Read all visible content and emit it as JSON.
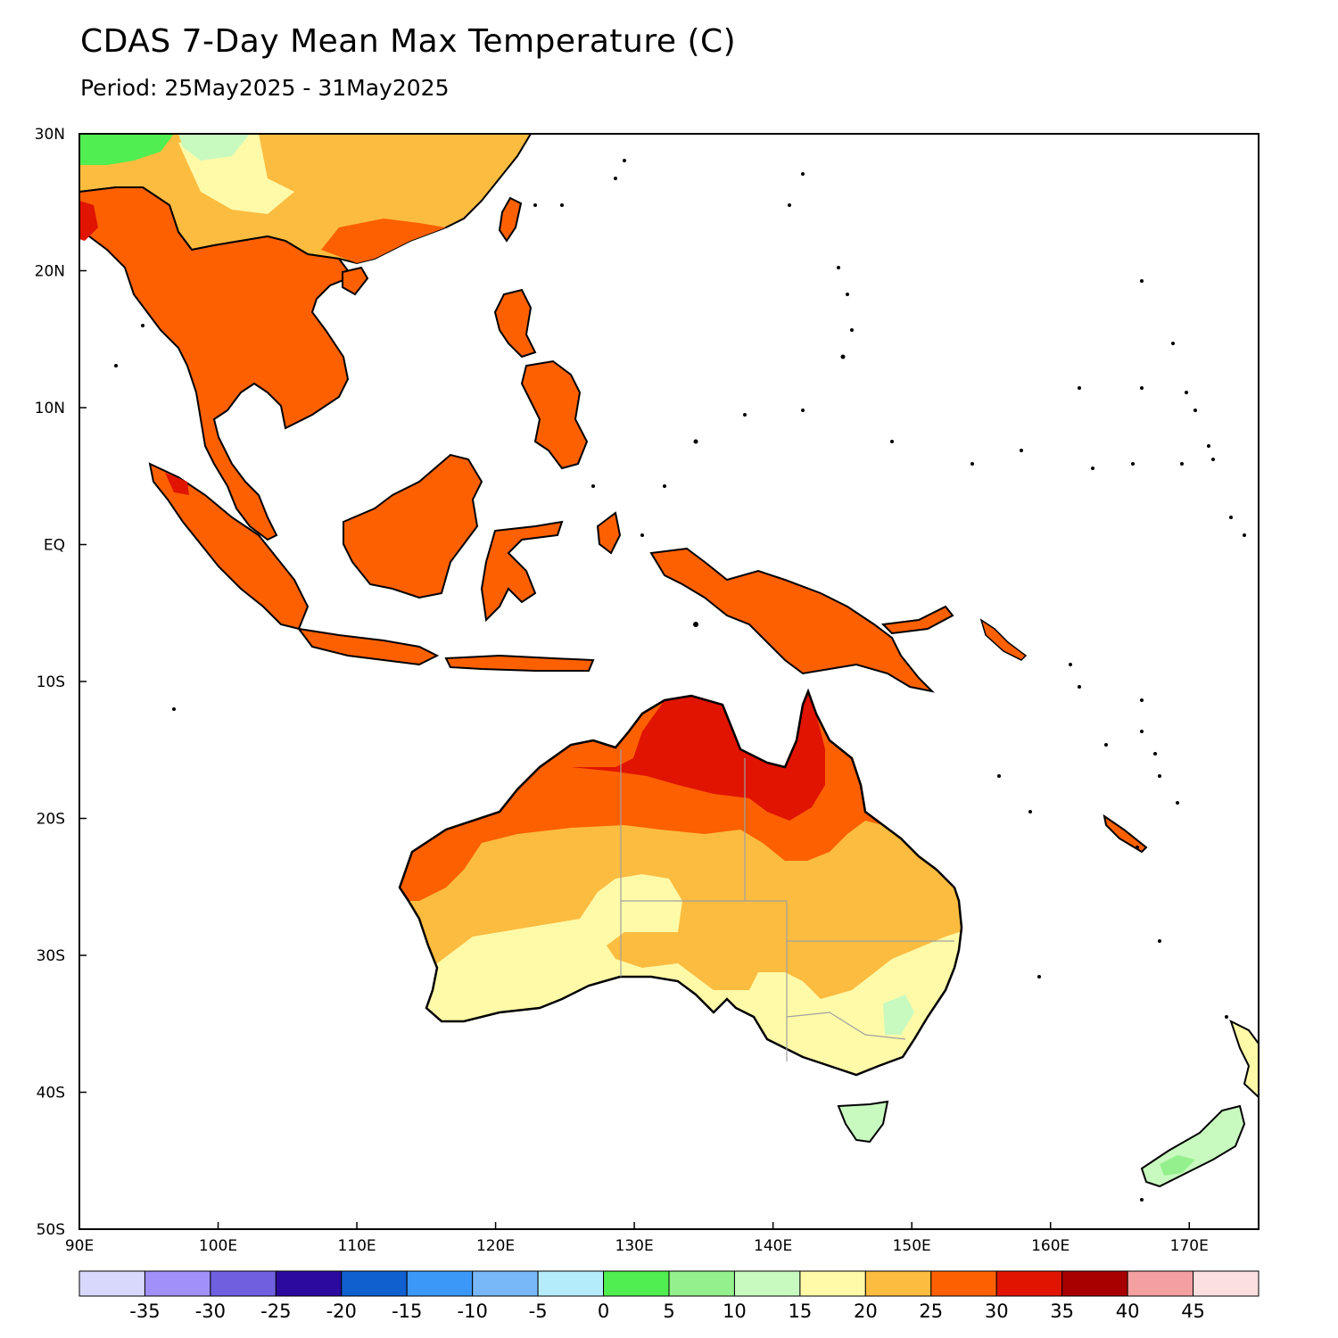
{
  "title": "CDAS 7-Day Mean Max Temperature (C)",
  "subtitle": "Period: 25May2025 - 31May2025",
  "map": {
    "projection": "lat-lon",
    "lon_range": [
      90,
      175
    ],
    "lat_range": [
      -50,
      30
    ],
    "lon_ticks": [
      {
        "value": 90,
        "label": "90E"
      },
      {
        "value": 100,
        "label": "100E"
      },
      {
        "value": 110,
        "label": "110E"
      },
      {
        "value": 120,
        "label": "120E"
      },
      {
        "value": 130,
        "label": "130E"
      },
      {
        "value": 140,
        "label": "140E"
      },
      {
        "value": 150,
        "label": "150E"
      },
      {
        "value": 160,
        "label": "160E"
      },
      {
        "value": 170,
        "label": "170E"
      }
    ],
    "lat_ticks": [
      {
        "value": 30,
        "label": "30N"
      },
      {
        "value": 20,
        "label": "20N"
      },
      {
        "value": 10,
        "label": "10N"
      },
      {
        "value": 0,
        "label": "EQ"
      },
      {
        "value": -10,
        "label": "10S"
      },
      {
        "value": -20,
        "label": "20S"
      },
      {
        "value": -30,
        "label": "30S"
      },
      {
        "value": -40,
        "label": "40S"
      },
      {
        "value": -50,
        "label": "50S"
      }
    ]
  },
  "legend": {
    "colors": [
      "#d8d8fc",
      "#a090f8",
      "#7060e0",
      "#2c0aa0",
      "#1060d0",
      "#3c98f8",
      "#78b8f8",
      "#b4ecfc",
      "#50ee50",
      "#94f08c",
      "#c8fac0",
      "#fffaa8",
      "#fcbc40",
      "#fc6000",
      "#e01400",
      "#a80000",
      "#f4a0a0",
      "#fce0e0"
    ],
    "labels": [
      "-35",
      "-30",
      "-25",
      "-20",
      "-15",
      "-10",
      "-5",
      "0",
      "5",
      "10",
      "15",
      "20",
      "25",
      "30",
      "35",
      "40",
      "45"
    ]
  },
  "colors": {
    "t15_20": "#fffaa8",
    "t20_25": "#fcbc40",
    "t25_30": "#fc6000",
    "t30_35": "#e01400",
    "t10_15": "#c8fac0",
    "t5_10": "#94f08c",
    "t0_5": "#50ee50"
  }
}
